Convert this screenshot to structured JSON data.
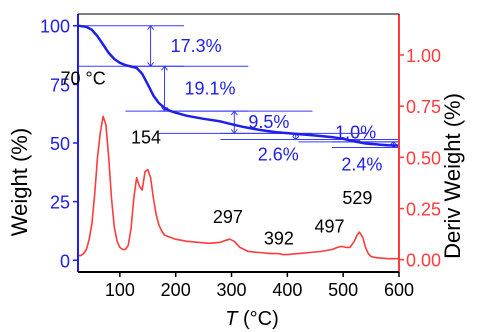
{
  "chart_data": {
    "type": "line",
    "xlabel": "T (°C)",
    "xlabel_italic_part": "T",
    "xlabel_unit_part": " (°C)",
    "ylabel_left": "Weight (%)",
    "ylabel_right": "Deriv Weight (%)",
    "xlim": [
      25,
      600
    ],
    "ylim_left": [
      -5,
      105
    ],
    "ylim_right": [
      -0.06,
      1.2
    ],
    "xticks": [
      100,
      200,
      300,
      400,
      500,
      600
    ],
    "yticks_left": [
      0,
      25,
      50,
      75,
      100
    ],
    "yticks_right": [
      0.0,
      0.25,
      0.5,
      0.75,
      1.0
    ],
    "xtick_labels": [
      "100",
      "200",
      "300",
      "400",
      "500",
      "600"
    ],
    "ytick_labels_left": [
      "0",
      "25",
      "50",
      "75",
      "100"
    ],
    "ytick_labels_right": [
      "0.00",
      "0.25",
      "0.50",
      "0.75",
      "1.00"
    ],
    "colors": {
      "weight": "#1f1fe6",
      "deriv": "#ff3b3b",
      "axis": "#000000",
      "marker": "#3a3aff"
    },
    "series": [
      {
        "axis": "left",
        "color": "#1f1fe6",
        "x": [
          25,
          40,
          50,
          60,
          70,
          80,
          90,
          100,
          110,
          120,
          130,
          140,
          150,
          160,
          170,
          180,
          190,
          200,
          220,
          250,
          280,
          300,
          320,
          350,
          380,
          400,
          420,
          450,
          480,
          500,
          520,
          540,
          560,
          580,
          600
        ],
        "y": [
          100,
          99.5,
          98.2,
          95.5,
          92.0,
          88.4,
          85.8,
          84.2,
          83.2,
          82.6,
          82.0,
          79.5,
          75.0,
          70.2,
          67.0,
          65.0,
          63.7,
          62.9,
          61.6,
          60.3,
          59.2,
          58.0,
          56.9,
          55.6,
          54.6,
          54.2,
          53.8,
          53.2,
          52.5,
          51.8,
          50.7,
          49.8,
          49.4,
          49.0,
          48.9
        ]
      },
      {
        "axis": "right",
        "color": "#ff3b3b",
        "x": [
          25,
          30,
          35,
          40,
          45,
          50,
          55,
          60,
          65,
          70,
          75,
          80,
          85,
          90,
          95,
          100,
          105,
          110,
          115,
          120,
          125,
          130,
          135,
          140,
          145,
          150,
          155,
          160,
          165,
          170,
          175,
          180,
          190,
          200,
          220,
          240,
          260,
          280,
          290,
          297,
          305,
          315,
          330,
          350,
          370,
          385,
          392,
          400,
          420,
          440,
          460,
          480,
          490,
          497,
          505,
          512,
          520,
          525,
          529,
          535,
          540,
          545,
          550,
          560,
          580,
          600
        ],
        "y": [
          0.02,
          0.02,
          0.03,
          0.05,
          0.1,
          0.18,
          0.32,
          0.5,
          0.62,
          0.7,
          0.66,
          0.5,
          0.3,
          0.16,
          0.09,
          0.06,
          0.05,
          0.05,
          0.07,
          0.15,
          0.3,
          0.4,
          0.36,
          0.34,
          0.43,
          0.44,
          0.4,
          0.3,
          0.22,
          0.17,
          0.14,
          0.12,
          0.11,
          0.1,
          0.09,
          0.085,
          0.08,
          0.085,
          0.095,
          0.1,
          0.09,
          0.06,
          0.04,
          0.035,
          0.03,
          0.03,
          0.025,
          0.025,
          0.03,
          0.035,
          0.04,
          0.05,
          0.06,
          0.065,
          0.06,
          0.06,
          0.09,
          0.12,
          0.135,
          0.11,
          0.06,
          0.03,
          0.015,
          0.01,
          0.005,
          0.005
        ]
      }
    ],
    "step_markers": [
      {
        "label": "17.3%",
        "x_start": 25,
        "x_end": 215,
        "y_top": 100,
        "y_bottom": 82.7,
        "arrow_x": 155
      },
      {
        "label": "19.1%",
        "x_start": 110,
        "x_end": 330,
        "y_top": 82.7,
        "y_bottom": 63.6,
        "arrow_x": 180
      },
      {
        "label": "9.5%",
        "x_start": 170,
        "x_end": 445,
        "y_top": 63.6,
        "y_bottom": 54.1,
        "arrow_x": 305
      },
      {
        "label": "2.6%",
        "x_start": 280,
        "x_end": 545,
        "y_top": 54.1,
        "y_bottom": 51.5,
        "arrow_x": 415
      },
      {
        "label": "1.0%",
        "x_start": 420,
        "x_end": 598,
        "y_top": 51.5,
        "y_bottom": 50.5,
        "arrow_x": 525
      },
      {
        "label": "2.4%",
        "x_start": 480,
        "x_end": 600,
        "y_top": 50.5,
        "y_bottom": 48.1,
        "arrow_x": 590
      }
    ],
    "peak_labels": [
      {
        "label": "70 °C",
        "x": 70,
        "y": 0.7
      },
      {
        "label": "154",
        "x": 154,
        "y": 0.44
      },
      {
        "label": "297",
        "x": 297,
        "y": 0.1
      },
      {
        "label": "392",
        "x": 392,
        "y": 0.025
      },
      {
        "label": "497",
        "x": 497,
        "y": 0.065
      },
      {
        "label": "529",
        "x": 529,
        "y": 0.135
      }
    ]
  }
}
